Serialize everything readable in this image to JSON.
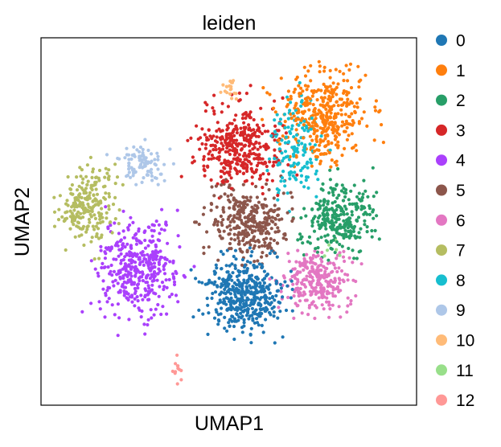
{
  "chart_data": {
    "type": "scatter",
    "title": "leiden",
    "xlabel": "UMAP1",
    "ylabel": "UMAP2",
    "xticks": false,
    "yticks": false,
    "grid": false,
    "legend_placement": "right",
    "series": [
      {
        "name": "0",
        "color": "#1f77b4",
        "center": [
          5.0,
          2.8
        ],
        "spread": [
          1.15,
          1.0
        ],
        "n": 420
      },
      {
        "name": "1",
        "color": "#ff7f0e",
        "center": [
          7.8,
          8.2
        ],
        "spread": [
          1.35,
          1.15
        ],
        "n": 380
      },
      {
        "name": "2",
        "color": "#279e68",
        "center": [
          8.3,
          5.1
        ],
        "spread": [
          1.05,
          1.0
        ],
        "n": 300
      },
      {
        "name": "3",
        "color": "#d62728",
        "center": [
          4.9,
          7.2
        ],
        "spread": [
          1.35,
          1.2
        ],
        "n": 380
      },
      {
        "name": "4",
        "color": "#aa40fc",
        "center": [
          1.4,
          3.6
        ],
        "spread": [
          1.25,
          1.35
        ],
        "n": 400
      },
      {
        "name": "5",
        "color": "#8c564b",
        "center": [
          5.2,
          5.0
        ],
        "spread": [
          1.3,
          0.95
        ],
        "n": 330
      },
      {
        "name": "6",
        "color": "#e377c2",
        "center": [
          7.5,
          3.2
        ],
        "spread": [
          1.05,
          0.85
        ],
        "n": 260
      },
      {
        "name": "7",
        "color": "#b5bd61",
        "center": [
          -0.4,
          5.5
        ],
        "spread": [
          0.9,
          1.05
        ],
        "n": 230
      },
      {
        "name": "8",
        "color": "#17becf",
        "center": [
          6.8,
          7.2
        ],
        "spread": [
          0.8,
          1.4
        ],
        "n": 150
      },
      {
        "name": "9",
        "color": "#aec7e8",
        "center": [
          1.5,
          6.7
        ],
        "spread": [
          0.8,
          0.5
        ],
        "n": 90
      },
      {
        "name": "10",
        "color": "#ffbb78",
        "center": [
          4.5,
          9.0
        ],
        "spread": [
          0.3,
          0.3
        ],
        "n": 20
      },
      {
        "name": "11",
        "color": "#98df8a",
        "center": [
          8.0,
          4.0
        ],
        "spread": [
          0.4,
          0.4
        ],
        "n": 6
      },
      {
        "name": "12",
        "color": "#ff9896",
        "center": [
          2.7,
          0.5
        ],
        "spread": [
          0.15,
          0.4
        ],
        "n": 12
      }
    ],
    "xlim": [
      -2,
      11
    ],
    "ylim": [
      -0.5,
      10.5
    ]
  }
}
